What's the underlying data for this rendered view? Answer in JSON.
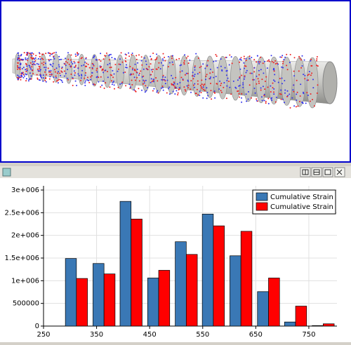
{
  "chart_data": {
    "type": "bar",
    "x": [
      312,
      364,
      415,
      467,
      519,
      570,
      622,
      674,
      725,
      777
    ],
    "series": [
      {
        "name": "Cumulative Strain",
        "color": "#3a78b5",
        "values": [
          1490000,
          1380000,
          2750000,
          1060000,
          1860000,
          2470000,
          1550000,
          760000,
          90000,
          10000
        ]
      },
      {
        "name": "Cumulative Strain",
        "color": "#ff0000",
        "values": [
          1050000,
          1150000,
          2360000,
          1230000,
          1580000,
          2210000,
          2090000,
          1060000,
          440000,
          50000
        ]
      }
    ],
    "xlim": [
      250,
      803
    ],
    "xticks": [
      250,
      350,
      450,
      550,
      650,
      750
    ],
    "ylim": [
      0,
      3000000
    ],
    "yticks": [
      0,
      500000,
      {
        "value": 1000000,
        "label": "1e+006"
      },
      {
        "value": 1500000,
        "label": "1.5e+006"
      },
      {
        "value": 2000000,
        "label": "2e+006"
      },
      {
        "value": 2500000,
        "label": "2.5e+006"
      },
      {
        "value": 3000000,
        "label": "3e+006"
      }
    ],
    "grid": true,
    "legend": "top-right"
  }
}
